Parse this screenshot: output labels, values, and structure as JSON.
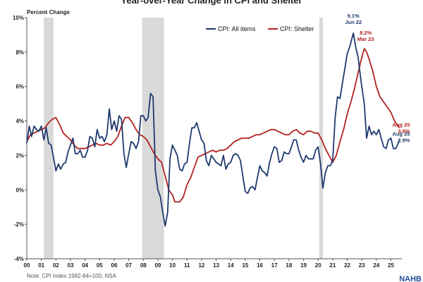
{
  "chart_data": {
    "type": "line",
    "title": "Year-over-Year Change in CPI and Shelter",
    "ylabel": "Percent Change",
    "ylim": [
      -4,
      10
    ],
    "yticks": [
      -4,
      -2,
      0,
      2,
      4,
      6,
      8,
      10
    ],
    "ytick_labels": [
      "-4%",
      "-2%",
      "0%",
      "2%",
      "4%",
      "6%",
      "8%",
      "10%"
    ],
    "xlim": [
      2000.0,
      2025.75
    ],
    "xtick_labels": [
      "00",
      "01",
      "02",
      "03",
      "04",
      "05",
      "06",
      "07",
      "08",
      "09",
      "10",
      "11",
      "12",
      "13",
      "14",
      "15",
      "16",
      "17",
      "18",
      "19",
      "20",
      "21",
      "22",
      "23",
      "24",
      "25"
    ],
    "grid": false,
    "legend_position": "top-right",
    "recessions": [
      [
        2001.17,
        2001.83
      ],
      [
        2007.92,
        2009.42
      ],
      [
        2020.08,
        2020.33
      ]
    ],
    "colors": {
      "cpi": "#1f3a6e",
      "shelter": "#b22222",
      "recession": "#d9d9d9"
    },
    "series": [
      {
        "name": "CPI: All items",
        "key": "cpi",
        "points": [
          [
            2000.0,
            2.7
          ],
          [
            2000.17,
            3.7
          ],
          [
            2000.33,
            3.1
          ],
          [
            2000.5,
            3.7
          ],
          [
            2000.67,
            3.5
          ],
          [
            2000.83,
            3.4
          ],
          [
            2001.0,
            3.7
          ],
          [
            2001.17,
            2.9
          ],
          [
            2001.33,
            3.6
          ],
          [
            2001.5,
            2.7
          ],
          [
            2001.67,
            2.6
          ],
          [
            2001.83,
            1.9
          ],
          [
            2002.0,
            1.1
          ],
          [
            2002.17,
            1.5
          ],
          [
            2002.33,
            1.2
          ],
          [
            2002.5,
            1.5
          ],
          [
            2002.67,
            1.6
          ],
          [
            2002.83,
            2.2
          ],
          [
            2003.0,
            2.6
          ],
          [
            2003.17,
            3.0
          ],
          [
            2003.33,
            2.1
          ],
          [
            2003.5,
            2.1
          ],
          [
            2003.67,
            2.3
          ],
          [
            2003.83,
            1.9
          ],
          [
            2004.0,
            1.9
          ],
          [
            2004.17,
            2.3
          ],
          [
            2004.33,
            3.1
          ],
          [
            2004.5,
            3.0
          ],
          [
            2004.67,
            2.5
          ],
          [
            2004.83,
            3.5
          ],
          [
            2005.0,
            3.0
          ],
          [
            2005.17,
            3.1
          ],
          [
            2005.33,
            2.8
          ],
          [
            2005.5,
            3.2
          ],
          [
            2005.67,
            4.7
          ],
          [
            2005.83,
            3.5
          ],
          [
            2006.0,
            4.0
          ],
          [
            2006.17,
            3.4
          ],
          [
            2006.33,
            4.3
          ],
          [
            2006.5,
            4.1
          ],
          [
            2006.67,
            2.1
          ],
          [
            2006.83,
            1.3
          ],
          [
            2007.0,
            2.1
          ],
          [
            2007.17,
            2.8
          ],
          [
            2007.33,
            2.7
          ],
          [
            2007.5,
            2.4
          ],
          [
            2007.67,
            2.8
          ],
          [
            2007.83,
            4.3
          ],
          [
            2008.0,
            4.3
          ],
          [
            2008.17,
            4.0
          ],
          [
            2008.33,
            4.2
          ],
          [
            2008.5,
            5.6
          ],
          [
            2008.67,
            5.4
          ],
          [
            2008.83,
            1.1
          ],
          [
            2009.0,
            0.0
          ],
          [
            2009.17,
            -0.4
          ],
          [
            2009.33,
            -1.3
          ],
          [
            2009.5,
            -2.1
          ],
          [
            2009.67,
            -1.3
          ],
          [
            2009.83,
            1.8
          ],
          [
            2010.0,
            2.6
          ],
          [
            2010.17,
            2.3
          ],
          [
            2010.33,
            2.0
          ],
          [
            2010.5,
            1.2
          ],
          [
            2010.67,
            1.1
          ],
          [
            2010.83,
            1.5
          ],
          [
            2011.0,
            1.6
          ],
          [
            2011.17,
            2.7
          ],
          [
            2011.33,
            3.6
          ],
          [
            2011.5,
            3.6
          ],
          [
            2011.67,
            3.9
          ],
          [
            2011.83,
            3.4
          ],
          [
            2012.0,
            2.9
          ],
          [
            2012.17,
            2.7
          ],
          [
            2012.33,
            1.7
          ],
          [
            2012.5,
            1.4
          ],
          [
            2012.67,
            2.0
          ],
          [
            2012.83,
            1.8
          ],
          [
            2013.0,
            1.6
          ],
          [
            2013.17,
            1.5
          ],
          [
            2013.33,
            1.4
          ],
          [
            2013.5,
            2.0
          ],
          [
            2013.67,
            1.2
          ],
          [
            2013.83,
            1.5
          ],
          [
            2014.0,
            1.6
          ],
          [
            2014.17,
            2.0
          ],
          [
            2014.33,
            2.1
          ],
          [
            2014.5,
            2.0
          ],
          [
            2014.67,
            1.7
          ],
          [
            2014.83,
            0.8
          ],
          [
            2015.0,
            -0.1
          ],
          [
            2015.17,
            -0.2
          ],
          [
            2015.33,
            0.1
          ],
          [
            2015.5,
            0.2
          ],
          [
            2015.67,
            0.0
          ],
          [
            2015.83,
            0.7
          ],
          [
            2016.0,
            1.4
          ],
          [
            2016.17,
            1.1
          ],
          [
            2016.33,
            1.0
          ],
          [
            2016.5,
            0.8
          ],
          [
            2016.67,
            1.6
          ],
          [
            2016.83,
            2.1
          ],
          [
            2017.0,
            2.5
          ],
          [
            2017.17,
            2.4
          ],
          [
            2017.33,
            1.6
          ],
          [
            2017.5,
            1.7
          ],
          [
            2017.67,
            2.2
          ],
          [
            2017.83,
            2.1
          ],
          [
            2018.0,
            2.1
          ],
          [
            2018.17,
            2.5
          ],
          [
            2018.33,
            2.9
          ],
          [
            2018.5,
            2.9
          ],
          [
            2018.67,
            2.3
          ],
          [
            2018.83,
            1.9
          ],
          [
            2019.0,
            1.6
          ],
          [
            2019.17,
            2.0
          ],
          [
            2019.33,
            1.8
          ],
          [
            2019.5,
            1.8
          ],
          [
            2019.67,
            1.8
          ],
          [
            2019.83,
            2.3
          ],
          [
            2020.0,
            2.5
          ],
          [
            2020.17,
            1.5
          ],
          [
            2020.33,
            0.1
          ],
          [
            2020.5,
            1.0
          ],
          [
            2020.67,
            1.4
          ],
          [
            2020.83,
            1.4
          ],
          [
            2021.0,
            1.7
          ],
          [
            2021.17,
            4.2
          ],
          [
            2021.33,
            5.4
          ],
          [
            2021.5,
            5.3
          ],
          [
            2021.67,
            6.2
          ],
          [
            2021.83,
            7.0
          ],
          [
            2022.0,
            7.9
          ],
          [
            2022.17,
            8.3
          ],
          [
            2022.42,
            9.1
          ],
          [
            2022.58,
            8.3
          ],
          [
            2022.75,
            7.7
          ],
          [
            2022.92,
            6.5
          ],
          [
            2023.0,
            6.0
          ],
          [
            2023.17,
            5.0
          ],
          [
            2023.33,
            3.0
          ],
          [
            2023.5,
            3.7
          ],
          [
            2023.67,
            3.2
          ],
          [
            2023.83,
            3.4
          ],
          [
            2024.0,
            3.2
          ],
          [
            2024.17,
            3.5
          ],
          [
            2024.33,
            3.0
          ],
          [
            2024.5,
            2.5
          ],
          [
            2024.67,
            2.4
          ],
          [
            2024.83,
            2.9
          ],
          [
            2025.0,
            3.0
          ],
          [
            2025.17,
            2.4
          ],
          [
            2025.33,
            2.4
          ],
          [
            2025.5,
            2.7
          ],
          [
            2025.58,
            2.9
          ]
        ]
      },
      {
        "name": "CPI: Shelter",
        "key": "shelter",
        "points": [
          [
            2000.0,
            2.8
          ],
          [
            2000.25,
            3.2
          ],
          [
            2000.5,
            3.3
          ],
          [
            2000.75,
            3.4
          ],
          [
            2001.0,
            3.5
          ],
          [
            2001.25,
            3.6
          ],
          [
            2001.5,
            3.9
          ],
          [
            2001.75,
            4.1
          ],
          [
            2002.0,
            4.2
          ],
          [
            2002.25,
            3.8
          ],
          [
            2002.5,
            3.3
          ],
          [
            2002.75,
            3.1
          ],
          [
            2003.0,
            2.9
          ],
          [
            2003.25,
            2.6
          ],
          [
            2003.5,
            2.4
          ],
          [
            2003.75,
            2.4
          ],
          [
            2004.0,
            2.4
          ],
          [
            2004.25,
            2.5
          ],
          [
            2004.5,
            2.6
          ],
          [
            2004.75,
            2.7
          ],
          [
            2005.0,
            2.6
          ],
          [
            2005.25,
            2.6
          ],
          [
            2005.5,
            2.7
          ],
          [
            2005.75,
            2.6
          ],
          [
            2006.0,
            2.8
          ],
          [
            2006.25,
            3.1
          ],
          [
            2006.5,
            3.7
          ],
          [
            2006.75,
            4.2
          ],
          [
            2007.0,
            4.2
          ],
          [
            2007.25,
            3.9
          ],
          [
            2007.5,
            3.5
          ],
          [
            2007.75,
            3.2
          ],
          [
            2008.0,
            3.1
          ],
          [
            2008.25,
            2.9
          ],
          [
            2008.5,
            2.5
          ],
          [
            2008.75,
            2.1
          ],
          [
            2009.0,
            1.8
          ],
          [
            2009.25,
            1.6
          ],
          [
            2009.5,
            0.8
          ],
          [
            2009.75,
            0.0
          ],
          [
            2010.0,
            -0.3
          ],
          [
            2010.17,
            -0.7
          ],
          [
            2010.5,
            -0.7
          ],
          [
            2010.75,
            -0.4
          ],
          [
            2011.0,
            0.3
          ],
          [
            2011.25,
            0.7
          ],
          [
            2011.5,
            1.3
          ],
          [
            2011.75,
            1.9
          ],
          [
            2012.0,
            2.0
          ],
          [
            2012.25,
            2.1
          ],
          [
            2012.5,
            2.2
          ],
          [
            2012.75,
            2.3
          ],
          [
            2013.0,
            2.2
          ],
          [
            2013.25,
            2.3
          ],
          [
            2013.5,
            2.3
          ],
          [
            2013.75,
            2.4
          ],
          [
            2014.0,
            2.6
          ],
          [
            2014.25,
            2.8
          ],
          [
            2014.5,
            2.9
          ],
          [
            2014.75,
            3.0
          ],
          [
            2015.0,
            3.0
          ],
          [
            2015.25,
            3.0
          ],
          [
            2015.5,
            3.1
          ],
          [
            2015.75,
            3.2
          ],
          [
            2016.0,
            3.2
          ],
          [
            2016.25,
            3.3
          ],
          [
            2016.5,
            3.4
          ],
          [
            2016.75,
            3.5
          ],
          [
            2017.0,
            3.5
          ],
          [
            2017.25,
            3.4
          ],
          [
            2017.5,
            3.3
          ],
          [
            2017.75,
            3.2
          ],
          [
            2018.0,
            3.2
          ],
          [
            2018.25,
            3.4
          ],
          [
            2018.5,
            3.5
          ],
          [
            2018.75,
            3.3
          ],
          [
            2019.0,
            3.2
          ],
          [
            2019.25,
            3.4
          ],
          [
            2019.5,
            3.4
          ],
          [
            2019.75,
            3.3
          ],
          [
            2020.0,
            3.3
          ],
          [
            2020.25,
            2.9
          ],
          [
            2020.5,
            2.4
          ],
          [
            2020.75,
            2.0
          ],
          [
            2021.0,
            1.6
          ],
          [
            2021.25,
            2.0
          ],
          [
            2021.5,
            2.8
          ],
          [
            2021.75,
            3.5
          ],
          [
            2022.0,
            4.4
          ],
          [
            2022.25,
            5.1
          ],
          [
            2022.5,
            5.9
          ],
          [
            2022.75,
            6.8
          ],
          [
            2023.0,
            7.7
          ],
          [
            2023.17,
            8.2
          ],
          [
            2023.33,
            8.0
          ],
          [
            2023.5,
            7.6
          ],
          [
            2023.75,
            6.9
          ],
          [
            2024.0,
            6.0
          ],
          [
            2024.25,
            5.4
          ],
          [
            2024.5,
            5.1
          ],
          [
            2024.75,
            4.8
          ],
          [
            2025.0,
            4.5
          ],
          [
            2025.25,
            4.0
          ],
          [
            2025.5,
            3.7
          ],
          [
            2025.58,
            3.6
          ]
        ]
      }
    ],
    "annotations": [
      {
        "series": "cpi",
        "x": 2022.42,
        "y": 9.1,
        "value_label": "9.1%",
        "date_label": "Jun 22",
        "color": "#1f3a6e"
      },
      {
        "series": "shelter",
        "x": 2023.17,
        "y": 8.2,
        "value_label": "8.2%",
        "date_label": "Mar 23",
        "color": "#b22222"
      },
      {
        "series": "shelter",
        "x": 2025.58,
        "y": 3.6,
        "value_label": "3.6%",
        "date_label": "Aug 25",
        "color": "#b22222"
      },
      {
        "series": "cpi",
        "x": 2025.58,
        "y": 2.9,
        "value_label": "2.9%",
        "date_label": "Aug 25",
        "color": "#1f3a6e"
      }
    ]
  },
  "note": "Note: CPI Index 1982-84=100, NSA",
  "logo_text": "NAHB"
}
